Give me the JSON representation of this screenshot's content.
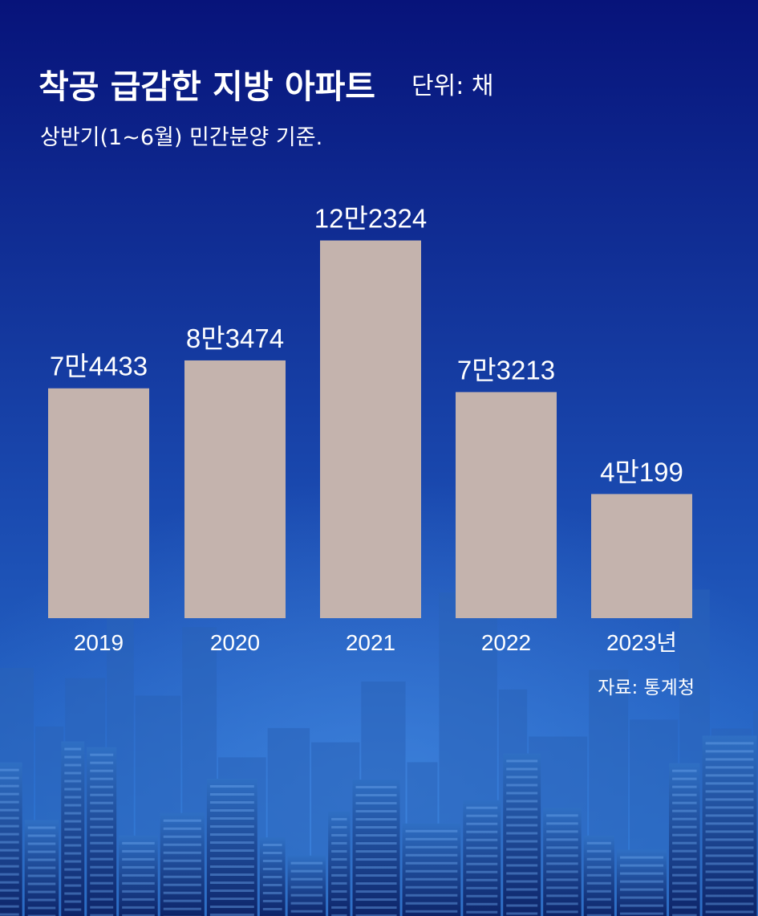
{
  "title": "착공 급감한 지방 아파트",
  "unit_label": "단위: 채",
  "subtitle": "상반기(1~6월) 민간분양 기준.",
  "source": "자료: 통계청",
  "colors": {
    "bar": "#c4b3ad",
    "background_top": "#07137a",
    "background_bottom": "#2c78d4",
    "text": "#ffffff"
  },
  "chart_data": {
    "type": "bar",
    "title": "착공 급감한 지방 아파트",
    "subtitle": "상반기(1~6월) 민간분양 기준.",
    "unit": "채",
    "categories": [
      "2019",
      "2020",
      "2021",
      "2022",
      "2023년"
    ],
    "values": [
      74433,
      83474,
      122324,
      73213,
      40199
    ],
    "value_labels": [
      "7만4433",
      "8만3474",
      "12만2324",
      "7만3213",
      "4만199"
    ],
    "ylim": [
      0,
      130000
    ],
    "grid": false,
    "legend": "none"
  }
}
